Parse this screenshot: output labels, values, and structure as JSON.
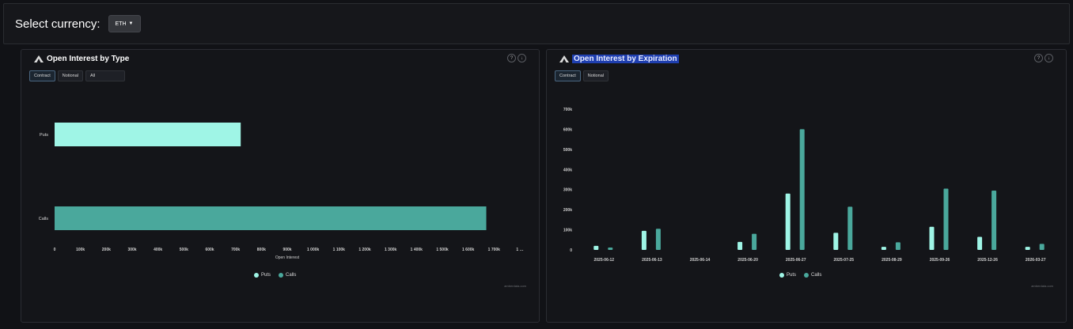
{
  "header": {
    "select_label": "Select currency:",
    "currency_value": "ETH"
  },
  "colors": {
    "puts": "#9ff5e6",
    "calls": "#4aa89c",
    "highlight": "#1f3fb0"
  },
  "panel_type": {
    "title": "Open Interest by Type",
    "tabs": [
      "Contract",
      "Notional",
      "All"
    ],
    "active_tab": "Contract",
    "credit": "amberdata.com",
    "legend": [
      "Puts",
      "Calls"
    ]
  },
  "panel_expiration": {
    "title": "Open Interest by Expiration",
    "tabs": [
      "Contract",
      "Notional"
    ],
    "active_tab": "Contract",
    "credit": "amberdata.com",
    "legend": [
      "Puts",
      "Calls"
    ]
  },
  "chart_data": [
    {
      "type": "bar",
      "orientation": "horizontal",
      "categories": [
        "Puts",
        "Calls"
      ],
      "values": [
        720000,
        1670000
      ],
      "colors": [
        "#9ff5e6",
        "#4aa89c"
      ],
      "xlabel": "Open Interest",
      "ylabel": "",
      "xlim": [
        0,
        1800000
      ],
      "x_ticks": [
        "0",
        "100k",
        "200k",
        "300k",
        "400k",
        "500k",
        "600k",
        "700k",
        "800k",
        "900k",
        "1 000k",
        "1 100k",
        "1 200k",
        "1 300k",
        "1 400k",
        "1 500k",
        "1 600k",
        "1 700k",
        "1 …"
      ],
      "legend": [
        "Puts",
        "Calls"
      ],
      "legend_position": "bottom-center"
    },
    {
      "type": "bar",
      "orientation": "vertical",
      "categories": [
        "2025-06-12",
        "2025-06-13",
        "2025-06-14",
        "2025-06-20",
        "2025-06-27",
        "2025-07-25",
        "2025-08-29",
        "2025-09-26",
        "2025-12-26",
        "2026-03-27"
      ],
      "series": [
        {
          "name": "Puts",
          "values": [
            20000,
            95000,
            0,
            40000,
            280000,
            85000,
            15000,
            115000,
            65000,
            15000
          ]
        },
        {
          "name": "Calls",
          "values": [
            12000,
            105000,
            0,
            80000,
            600000,
            215000,
            38000,
            305000,
            295000,
            30000
          ]
        }
      ],
      "y_ticks": [
        "0",
        "100k",
        "200k",
        "300k",
        "400k",
        "500k",
        "600k",
        "700k"
      ],
      "ylim": [
        0,
        700000
      ],
      "xlabel": "",
      "ylabel": "",
      "legend_position": "bottom-center"
    }
  ]
}
